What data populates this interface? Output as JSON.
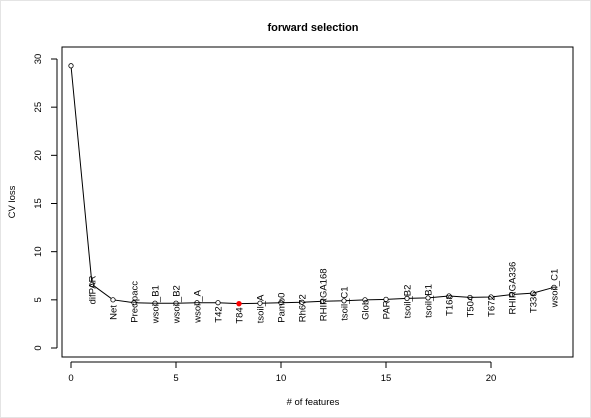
{
  "chart_data": {
    "type": "line",
    "title": "forward selection",
    "xlabel": "# of features",
    "ylabel": "CV loss",
    "xlim": [
      0,
      23
    ],
    "ylim": [
      0,
      30
    ],
    "xticks": [
      0,
      5,
      10,
      15,
      20
    ],
    "yticks": [
      0,
      5,
      10,
      15,
      20,
      25,
      30
    ],
    "grid": false,
    "highlight_color": "#ff0000",
    "line_color": "#000000",
    "highlight_index": 8,
    "x": [
      0,
      1,
      2,
      3,
      4,
      5,
      6,
      7,
      8,
      9,
      10,
      11,
      12,
      13,
      14,
      15,
      16,
      17,
      18,
      19,
      20,
      21,
      22,
      23
    ],
    "y": [
      29.3,
      6.6,
      5.0,
      4.7,
      4.65,
      4.65,
      4.7,
      4.7,
      4.6,
      4.65,
      4.7,
      4.75,
      4.85,
      4.9,
      5.0,
      5.05,
      5.15,
      5.2,
      5.4,
      5.25,
      5.3,
      5.55,
      5.7,
      6.3
    ],
    "point_labels": [
      "",
      "difPAR",
      "Net",
      "Precipacc",
      "wsoil_B1",
      "wsoil_B2",
      "wsoil_A",
      "T42",
      "T84",
      "tsoil_A",
      "Pamb0",
      "Rh672",
      "RHIRGA168",
      "tsoil_C1",
      "Glob",
      "PAR",
      "tsoil_B2",
      "tsoil_B1",
      "T168",
      "T504",
      "T672",
      "RHIRGA336",
      "T336",
      "wsoil_C1"
    ]
  }
}
